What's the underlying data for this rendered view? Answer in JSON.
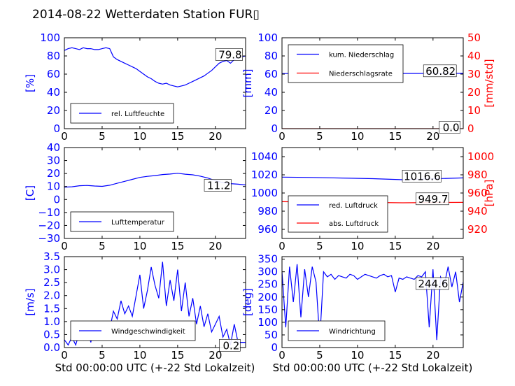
{
  "title": "2014-08-22 Wetterdaten Station FUR▯",
  "colors": {
    "blue": "#0000ff",
    "red": "#ff0000",
    "black": "#000000"
  },
  "chart_data": [
    {
      "id": "humidity",
      "type": "line",
      "xlim": [
        0,
        24
      ],
      "xticks": [
        "0",
        "5",
        "10",
        "15",
        "20"
      ],
      "ylim": [
        0,
        100
      ],
      "yticks": [
        "0",
        "20",
        "40",
        "60",
        "80",
        "100"
      ],
      "ylabel": "[%]",
      "xlabel": "",
      "series": [
        {
          "name": "rel. Luftfeuchte",
          "color": "#0000ff",
          "x": [
            0,
            0.5,
            1,
            1.5,
            2,
            2.5,
            3,
            3.5,
            4,
            4.5,
            5,
            5.5,
            6,
            6.5,
            7,
            7.5,
            8,
            8.5,
            9,
            9.5,
            10,
            10.5,
            11,
            11.5,
            12,
            12.5,
            13,
            13.5,
            14,
            14.5,
            15,
            15.5,
            16,
            16.5,
            17,
            17.5,
            18,
            18.5,
            19,
            19.5,
            20,
            20.5,
            21,
            21.5,
            22,
            22.5,
            23,
            23.5,
            24
          ],
          "y": [
            86,
            88,
            89,
            88,
            87,
            89,
            88,
            88,
            87,
            87,
            88,
            89,
            88,
            79,
            76,
            74,
            72,
            70,
            68,
            66,
            63,
            60,
            57,
            55,
            52,
            50,
            49,
            50,
            48,
            47,
            46,
            47,
            48,
            50,
            52,
            54,
            56,
            58,
            61,
            64,
            68,
            72,
            74,
            75,
            72,
            76,
            78,
            79,
            80
          ]
        }
      ],
      "annotations": [
        {
          "text": "79.8",
          "x": 23.5,
          "y": 82
        }
      ]
    },
    {
      "id": "precipitation",
      "type": "line",
      "xlim": [
        0,
        24
      ],
      "xticks": [
        "0",
        "5",
        "10",
        "15",
        "20"
      ],
      "ylim": [
        0,
        100
      ],
      "yticks": [
        "0",
        "20",
        "40",
        "60",
        "80",
        "100"
      ],
      "ylabel": "[mm]",
      "y2lim": [
        0,
        50
      ],
      "y2ticks": [
        "0",
        "10",
        "20",
        "30",
        "40",
        "50"
      ],
      "y2label": "[mm/std]",
      "xlabel": "",
      "series": [
        {
          "name": "kum. Niederschlag",
          "color": "#0000ff",
          "x": [
            0,
            6,
            12,
            18,
            24
          ],
          "y": [
            60.6,
            60.7,
            60.8,
            60.8,
            60.82
          ]
        },
        {
          "name": "Niederschlagsrate",
          "color": "#ff0000",
          "axis": "right",
          "x": [
            0,
            24
          ],
          "y": [
            0,
            0
          ]
        }
      ],
      "annotations": [
        {
          "text": "60.82",
          "x": 23,
          "y": 64
        },
        {
          "text": "0.0",
          "x": 23.5,
          "y": 2
        }
      ]
    },
    {
      "id": "temperature",
      "type": "line",
      "xlim": [
        0,
        24
      ],
      "xticks": [
        "0",
        "5",
        "10",
        "15",
        "20"
      ],
      "ylim": [
        -30,
        40
      ],
      "yticks": [
        "−30",
        "−20",
        "−10",
        "0",
        "10",
        "20",
        "30",
        "40"
      ],
      "ylabel": "[C]",
      "xlabel": "",
      "series": [
        {
          "name": "Lufttemperatur",
          "color": "#0000ff",
          "x": [
            0,
            1,
            2,
            3,
            4,
            5,
            6,
            7,
            8,
            9,
            10,
            11,
            12,
            13,
            14,
            15,
            16,
            17,
            18,
            19,
            20,
            21,
            22,
            23,
            24
          ],
          "y": [
            9.5,
            9.8,
            10.6,
            10.8,
            10.4,
            10.1,
            11,
            12.5,
            14,
            15.5,
            17,
            17.8,
            18.4,
            19.2,
            19.6,
            20.2,
            19.5,
            19,
            18,
            16.5,
            14.5,
            13,
            12.2,
            11.8,
            11.2
          ]
        }
      ],
      "annotations": [
        {
          "text": "11.2",
          "x": 22,
          "y": 11.2
        }
      ]
    },
    {
      "id": "pressure",
      "type": "line",
      "xlim": [
        0,
        24
      ],
      "xticks": [
        "0",
        "5",
        "10",
        "15",
        "20"
      ],
      "ylim": [
        950,
        1050
      ],
      "yticks": [
        "960",
        "980",
        "1000",
        "1020",
        "1040"
      ],
      "y2lim": [
        910,
        1010
      ],
      "y2ticks": [
        "920",
        "940",
        "960",
        "980",
        "1000"
      ],
      "y2label": "[hPa]",
      "xlabel": "",
      "series": [
        {
          "name": "red. Luftdruck",
          "color": "#0000ff",
          "x": [
            0,
            4,
            8,
            12,
            16,
            20,
            24
          ],
          "y": [
            1017.5,
            1017.1,
            1016.5,
            1015.8,
            1014.6,
            1015.6,
            1016.6
          ]
        },
        {
          "name": "abs. Luftdruck",
          "color": "#ff0000",
          "axis": "right",
          "x": [
            0,
            4,
            8,
            12,
            16,
            20,
            24
          ],
          "y": [
            950.5,
            950.1,
            950.3,
            949.6,
            949.2,
            949.5,
            949.7
          ]
        }
      ],
      "annotations": [
        {
          "text": "1016.6",
          "x": 21,
          "y": 1019
        },
        {
          "text": "949.7",
          "x": 22,
          "y": 994
        }
      ]
    },
    {
      "id": "wind_speed",
      "type": "line",
      "xlim": [
        0,
        24
      ],
      "xticks": [
        "0",
        "5",
        "10",
        "15",
        "20"
      ],
      "ylim": [
        0,
        3.5
      ],
      "yticks": [
        "0.0",
        "0.5",
        "1.0",
        "1.5",
        "2.0",
        "2.5",
        "3.0",
        "3.5"
      ],
      "ylabel": "[m/s]",
      "xlabel": "Std 00:00:00 UTC (+-22 Std Lokalzeit)",
      "series": [
        {
          "name": "Windgeschwindigkeit",
          "color": "#0000ff",
          "x": [
            0,
            0.5,
            1,
            1.5,
            2,
            2.5,
            3,
            3.5,
            4,
            4.5,
            5,
            5.5,
            6,
            6.5,
            7,
            7.5,
            8,
            8.5,
            9,
            9.5,
            10,
            10.5,
            11,
            11.5,
            12,
            12.5,
            13,
            13.5,
            14,
            14.5,
            15,
            15.5,
            16,
            16.5,
            17,
            17.5,
            18,
            18.5,
            19,
            19.5,
            20,
            20.5,
            21,
            21.5,
            22,
            22.5,
            23,
            23.5,
            24
          ],
          "y": [
            0.3,
            0.1,
            0.4,
            0.1,
            0.6,
            0.3,
            0.8,
            0.2,
            0.9,
            0.3,
            0.5,
            0.9,
            0.7,
            1.4,
            1.1,
            1.8,
            1.3,
            1.6,
            1.2,
            2.0,
            2.8,
            1.5,
            2.2,
            3.1,
            2.4,
            1.9,
            3.3,
            1.6,
            2.6,
            1.8,
            3.0,
            1.4,
            2.5,
            1.2,
            1.9,
            0.9,
            1.6,
            0.8,
            1.3,
            0.6,
            0.9,
            1.2,
            0.4,
            0.7,
            0.1,
            0.9,
            0.2,
            0.2,
            0.2
          ]
        }
      ],
      "annotations": [
        {
          "text": "0.2",
          "x": 23.2,
          "y": 0.1
        }
      ]
    },
    {
      "id": "wind_direction",
      "type": "line",
      "xlim": [
        0,
        24
      ],
      "xticks": [
        "0",
        "5",
        "10",
        "15",
        "20"
      ],
      "ylim": [
        0,
        360
      ],
      "yticks": [
        "0",
        "50",
        "100",
        "150",
        "200",
        "250",
        "300",
        "350"
      ],
      "ylabel": "[deg]",
      "xlabel": "Std 00:00:00 UTC (+-22 Std Lokalzeit)",
      "series": [
        {
          "name": "Windrichtung",
          "color": "#0000ff",
          "x": [
            0,
            0.5,
            1,
            1.5,
            2,
            2.5,
            3,
            3.5,
            4,
            4.5,
            5,
            5.5,
            6,
            6.5,
            7,
            7.5,
            8,
            8.5,
            9,
            9.5,
            10,
            10.5,
            11,
            11.5,
            12,
            12.5,
            13,
            13.5,
            14,
            14.5,
            15,
            15.5,
            16,
            16.5,
            17,
            17.5,
            18,
            18.5,
            19,
            19.5,
            20,
            20.5,
            21,
            21.5,
            22,
            22.5,
            23,
            23.5,
            24
          ],
          "y": [
            300,
            80,
            320,
            180,
            330,
            120,
            310,
            200,
            320,
            260,
            30,
            300,
            280,
            290,
            270,
            285,
            280,
            275,
            290,
            285,
            270,
            280,
            290,
            285,
            280,
            275,
            285,
            290,
            280,
            285,
            220,
            275,
            270,
            280,
            275,
            270,
            285,
            280,
            300,
            80,
            310,
            30,
            280,
            250,
            320,
            240,
            300,
            180,
            260
          ]
        }
      ],
      "annotations": [
        {
          "text": "244.6",
          "x": 22,
          "y": 255
        }
      ]
    }
  ]
}
